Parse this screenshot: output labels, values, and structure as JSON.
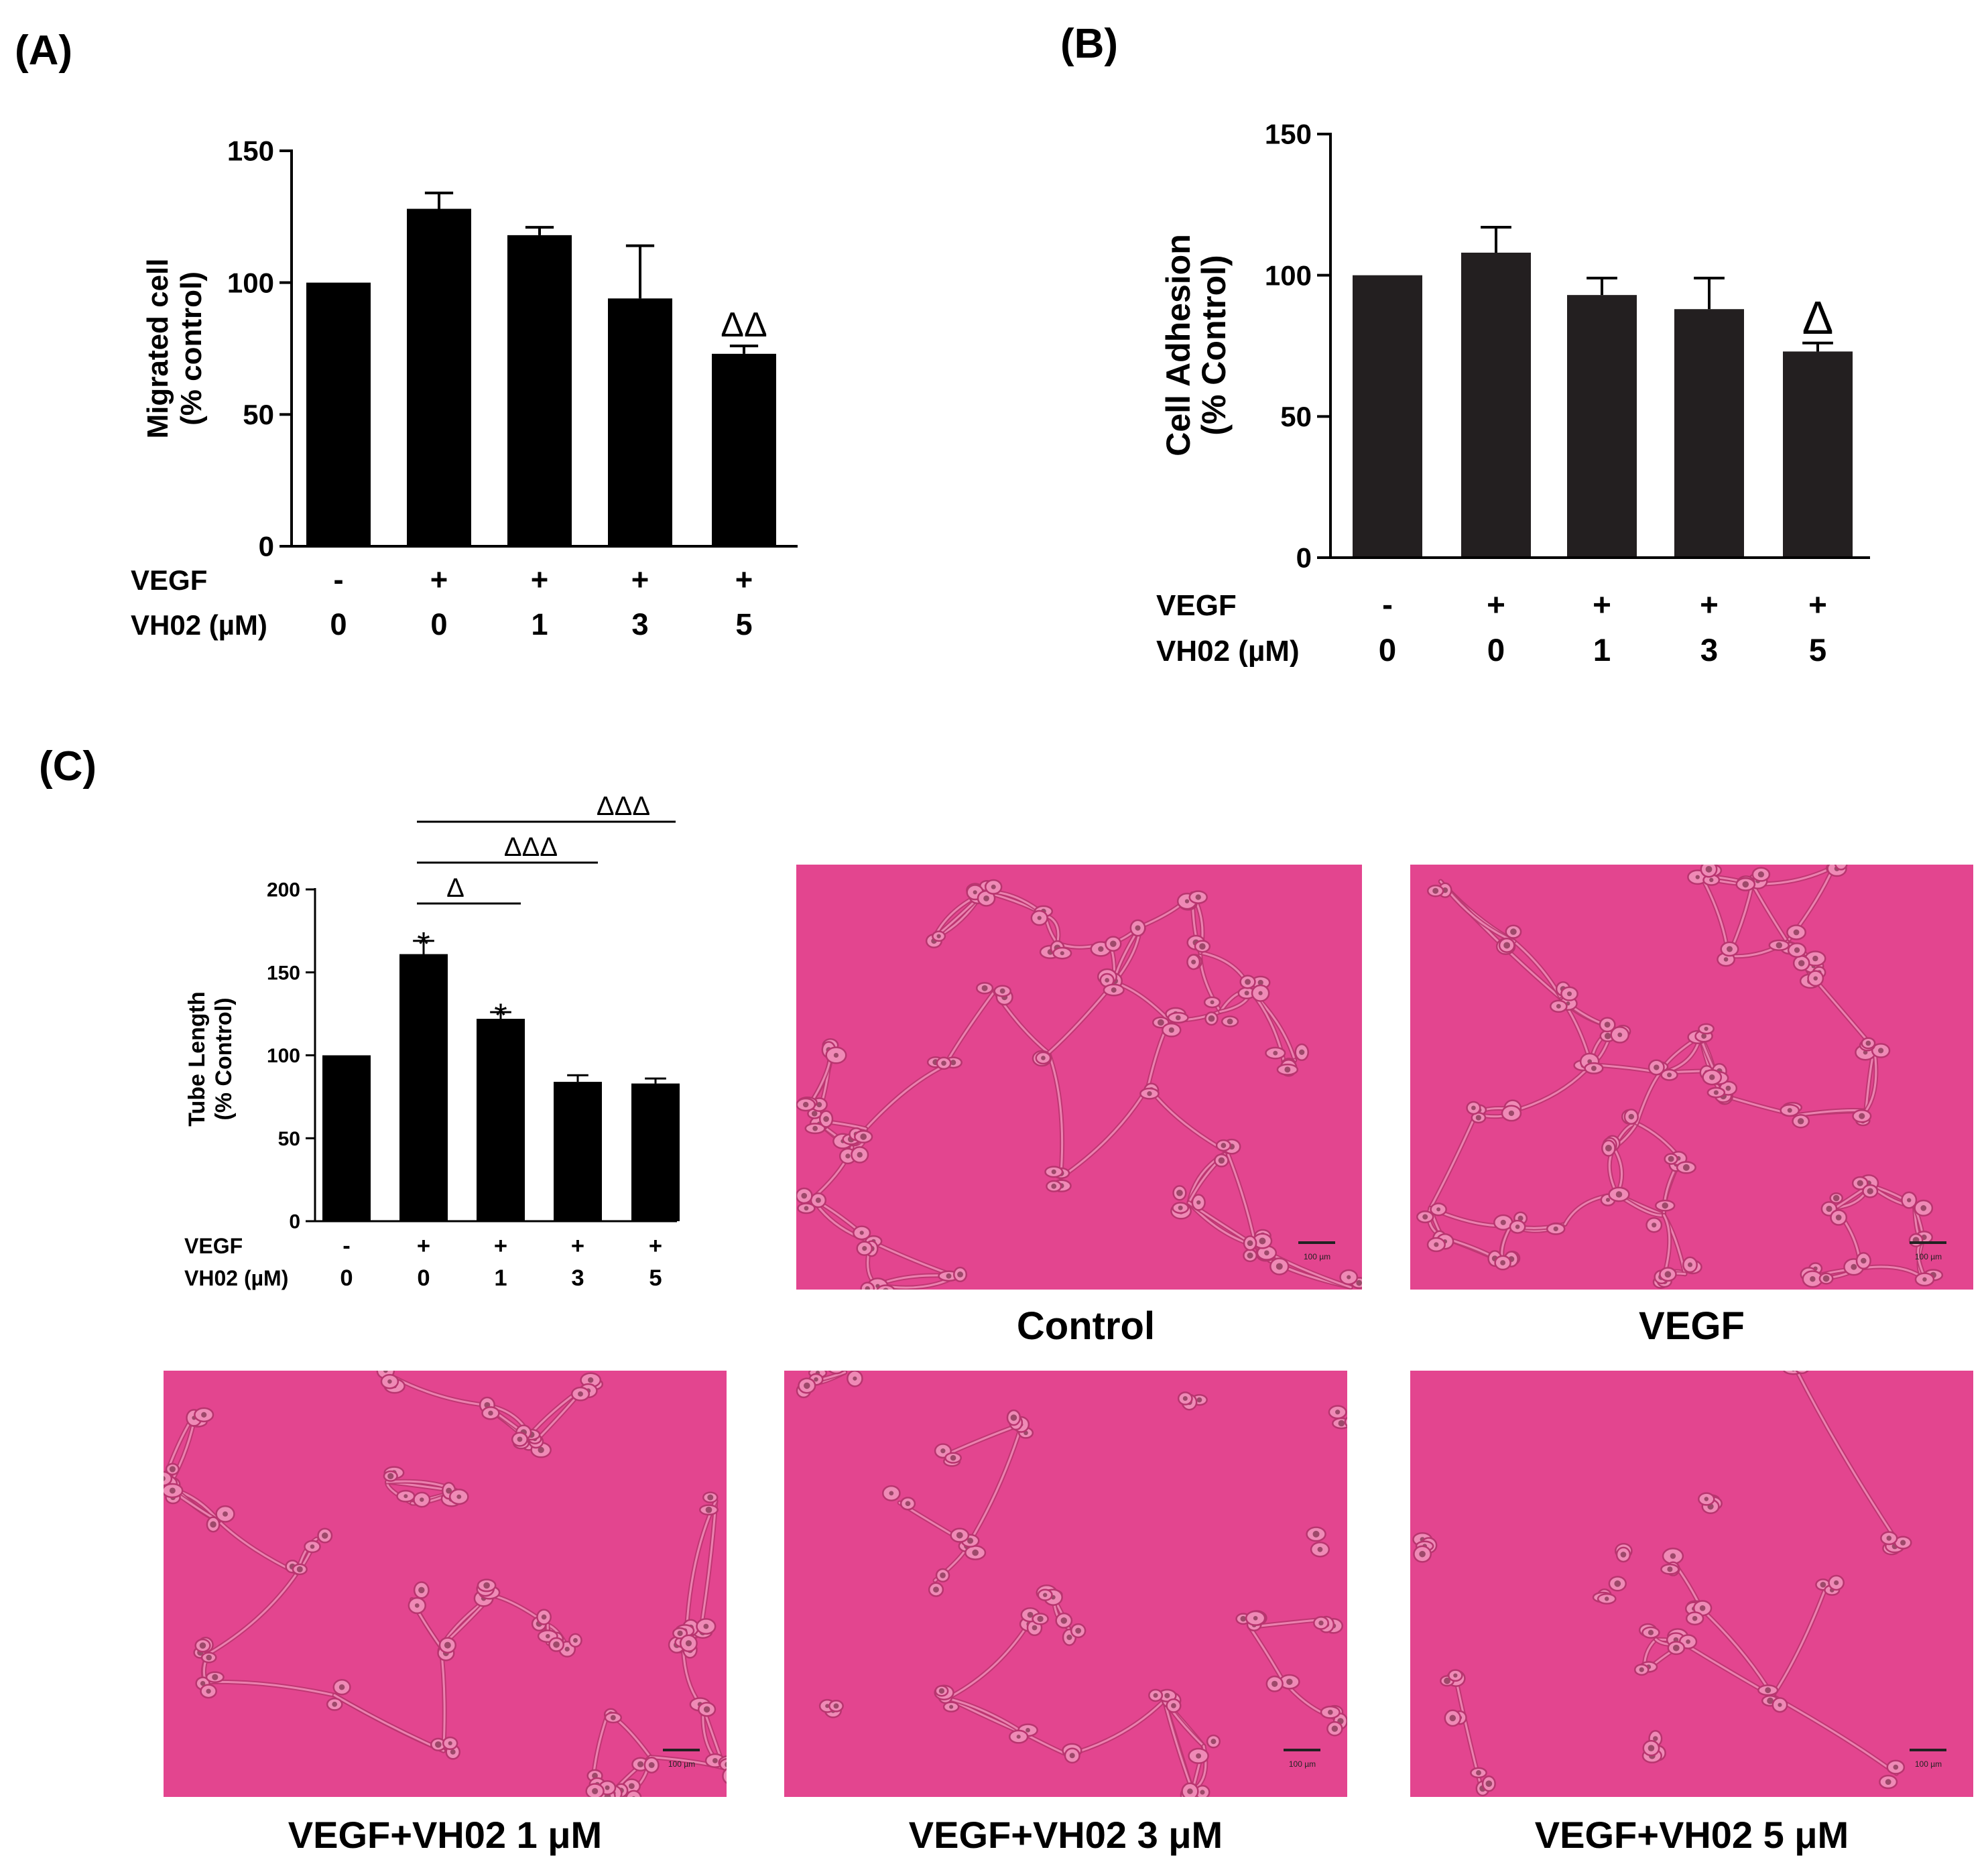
{
  "panels": {
    "A": "(A)",
    "B": "(B)",
    "C": "(C)"
  },
  "chart_data": [
    {
      "id": "A",
      "type": "bar",
      "ylabel_line1": "Migrated cell",
      "ylabel_line2": "(% control)",
      "ylim": [
        0,
        150
      ],
      "yticks": [
        0,
        50,
        100,
        150
      ],
      "categories": [
        "1",
        "2",
        "3",
        "4",
        "5"
      ],
      "values": [
        100,
        128,
        118,
        94,
        73
      ],
      "errors": [
        0,
        6,
        3,
        20,
        3
      ],
      "annotations": [
        "",
        "",
        "",
        "",
        "ΔΔ"
      ],
      "condition_rows": [
        {
          "label": "VEGF",
          "values": [
            "-",
            "+",
            "+",
            "+",
            "+"
          ]
        },
        {
          "label": "VH02 (µM)",
          "values": [
            "0",
            "0",
            "1",
            "3",
            "5"
          ]
        }
      ],
      "bar_color": "#000000"
    },
    {
      "id": "B",
      "type": "bar",
      "ylabel_line1": "Cell Adhesion",
      "ylabel_line2": "(% Control)",
      "ylim": [
        0,
        150
      ],
      "yticks": [
        0,
        50,
        100,
        150
      ],
      "categories": [
        "1",
        "2",
        "3",
        "4",
        "5"
      ],
      "values": [
        100,
        108,
        93,
        88,
        73
      ],
      "errors": [
        0,
        9,
        6,
        11,
        3
      ],
      "annotations": [
        "",
        "",
        "",
        "",
        "Δ"
      ],
      "condition_rows": [
        {
          "label": "VEGF",
          "values": [
            "-",
            "+",
            "+",
            "+",
            "+"
          ]
        },
        {
          "label": "VH02 (µM)",
          "values": [
            "0",
            "0",
            "1",
            "3",
            "5"
          ]
        }
      ],
      "bar_color": "#231f20"
    },
    {
      "id": "C",
      "type": "bar",
      "ylabel_line1": "Tube Length",
      "ylabel_line2": "(% Control)",
      "ylim": [
        0,
        200
      ],
      "yticks": [
        0,
        50,
        100,
        150,
        200
      ],
      "categories": [
        "1",
        "2",
        "3",
        "4",
        "5"
      ],
      "values": [
        100,
        161,
        122,
        84,
        83
      ],
      "errors": [
        0,
        8,
        4,
        4,
        3
      ],
      "annotations": [
        "",
        "*",
        "*",
        "",
        ""
      ],
      "comparisons": [
        {
          "from": 1,
          "to": 2,
          "label": "Δ"
        },
        {
          "from": 1,
          "to": 3,
          "label": "ΔΔΔ"
        },
        {
          "from": 1,
          "to": 4,
          "label": "ΔΔΔ"
        }
      ],
      "condition_rows": [
        {
          "label": "VEGF",
          "values": [
            "-",
            "+",
            "+",
            "+",
            "+"
          ]
        },
        {
          "label": "VH02 (µM)",
          "values": [
            "0",
            "0",
            "1",
            "3",
            "5"
          ]
        }
      ],
      "bar_color": "#000000"
    }
  ],
  "micrographs": [
    {
      "id": "control",
      "caption": "Control",
      "scale_text": "100 µm"
    },
    {
      "id": "vegf",
      "caption": "VEGF",
      "scale_text": "100 µm"
    },
    {
      "id": "vh02-1",
      "caption": "VEGF+VH02 1 μM",
      "scale_text": "100 µm"
    },
    {
      "id": "vh02-3",
      "caption": "VEGF+VH02 3 μM",
      "scale_text": "100 µm"
    },
    {
      "id": "vh02-5",
      "caption": "VEGF+VH02 5 μM",
      "scale_text": "100 µm"
    }
  ],
  "colors": {
    "micrograph_background": "#e3458f",
    "cell_stroke": "#b8356f",
    "cell_fill": "#ef8ab6",
    "nucleus": "#7a2e4a"
  },
  "icons": {
    "scale_bar": "scale-bar-icon"
  }
}
